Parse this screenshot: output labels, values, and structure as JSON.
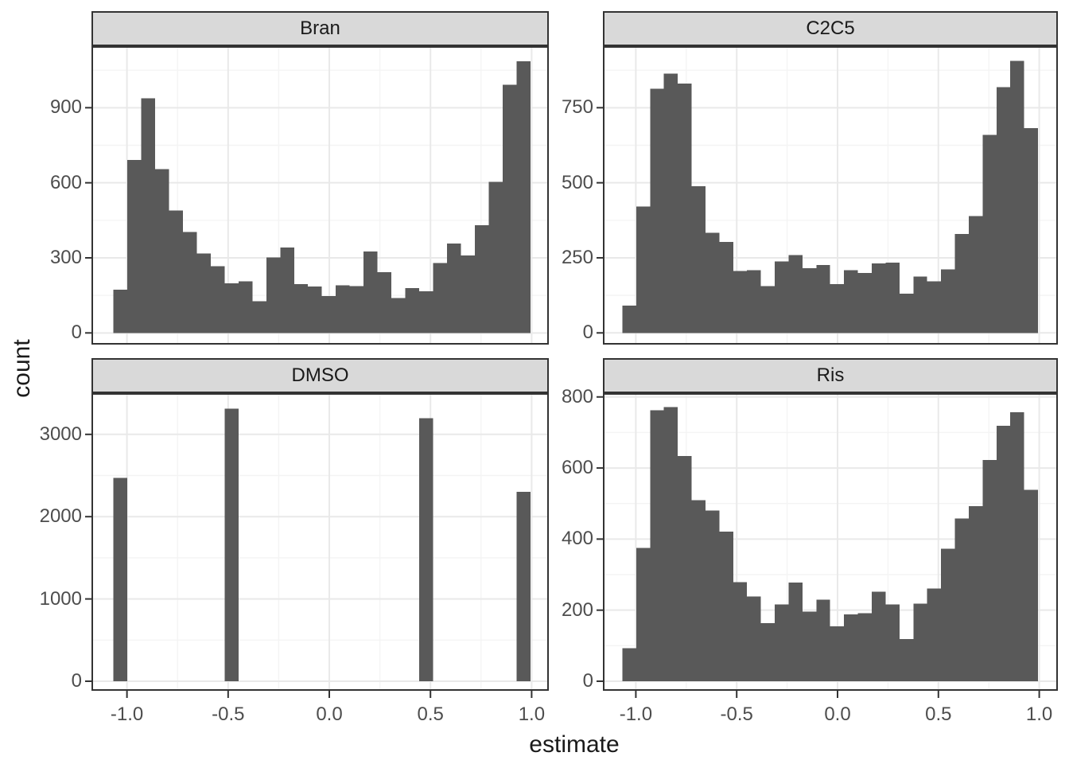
{
  "chart_data": {
    "type": "bar",
    "subtype": "faceted-histogram",
    "xlabel": "estimate",
    "ylabel": "count",
    "x_tick_labels": [
      "-1.0",
      "-0.5",
      "0.0",
      "0.5",
      "1.0"
    ],
    "x_ticks": [
      -1.0,
      -0.5,
      0.0,
      0.5,
      1.0
    ],
    "x_minor": [
      -0.75,
      -0.25,
      0.25,
      0.75
    ],
    "bin_start": -1.067,
    "bin_width": 0.0687,
    "grid": "on",
    "legend": "none",
    "facets": [
      {
        "title": "Bran",
        "yticks": [
          0,
          300,
          600,
          900
        ],
        "ytick_labels": [
          "0",
          "300",
          "600",
          "900"
        ],
        "y_minor": [
          150,
          450,
          750,
          1050
        ],
        "ylim": [
          -46.7,
          1146
        ],
        "counts": [
          172,
          691,
          938,
          654,
          490,
          403,
          318,
          266,
          198,
          206,
          127,
          302,
          341,
          195,
          185,
          147,
          190,
          187,
          325,
          243,
          140,
          179,
          166,
          280,
          357,
          310,
          431,
          603,
          991,
          1086
        ]
      },
      {
        "title": "C2C5",
        "yticks": [
          0,
          250,
          500,
          750
        ],
        "ytick_labels": [
          "0",
          "250",
          "500",
          "750"
        ],
        "y_minor": [
          125,
          375,
          625,
          875
        ],
        "ylim": [
          -39,
          955
        ],
        "counts": [
          91,
          421,
          813,
          863,
          831,
          488,
          334,
          303,
          206,
          209,
          156,
          238,
          259,
          215,
          226,
          162,
          209,
          199,
          231,
          234,
          130,
          187,
          172,
          212,
          329,
          389,
          660,
          819,
          906,
          682
        ]
      },
      {
        "title": "DMSO",
        "yticks": [
          0,
          1000,
          2000,
          3000
        ],
        "ytick_labels": [
          "0",
          "1000",
          "2000",
          "3000"
        ],
        "y_minor": [
          500,
          1500,
          2500,
          3500
        ],
        "ylim": [
          -116,
          3501
        ],
        "counts": [
          2470,
          0,
          0,
          0,
          0,
          0,
          0,
          0,
          3310,
          0,
          0,
          0,
          0,
          0,
          0,
          0,
          0,
          0,
          0,
          0,
          0,
          0,
          3195,
          0,
          0,
          0,
          0,
          0,
          0,
          2300
        ]
      },
      {
        "title": "Ris",
        "yticks": [
          0,
          200,
          400,
          600,
          800
        ],
        "ytick_labels": [
          "0",
          "200",
          "400",
          "600",
          "800"
        ],
        "y_minor": [
          100,
          300,
          500,
          700
        ],
        "ylim": [
          -26.9,
          810.7
        ],
        "counts": [
          93,
          375,
          762,
          772,
          634,
          509,
          480,
          421,
          279,
          239,
          164,
          216,
          278,
          196,
          230,
          154,
          188,
          192,
          252,
          216,
          119,
          218,
          261,
          373,
          458,
          493,
          623,
          719,
          757,
          539
        ]
      }
    ]
  },
  "style": {
    "bar_fill": "#595959",
    "panel_bg": "#ffffff",
    "panel_border": "#333333",
    "strip_bg": "#d9d9d9",
    "grid_major": "#e9e9e9",
    "grid_minor": "#f4f4f4",
    "tick_mark": "#333333",
    "tick_text": "#4d4d4d",
    "title_text": "#1a1a1a"
  }
}
